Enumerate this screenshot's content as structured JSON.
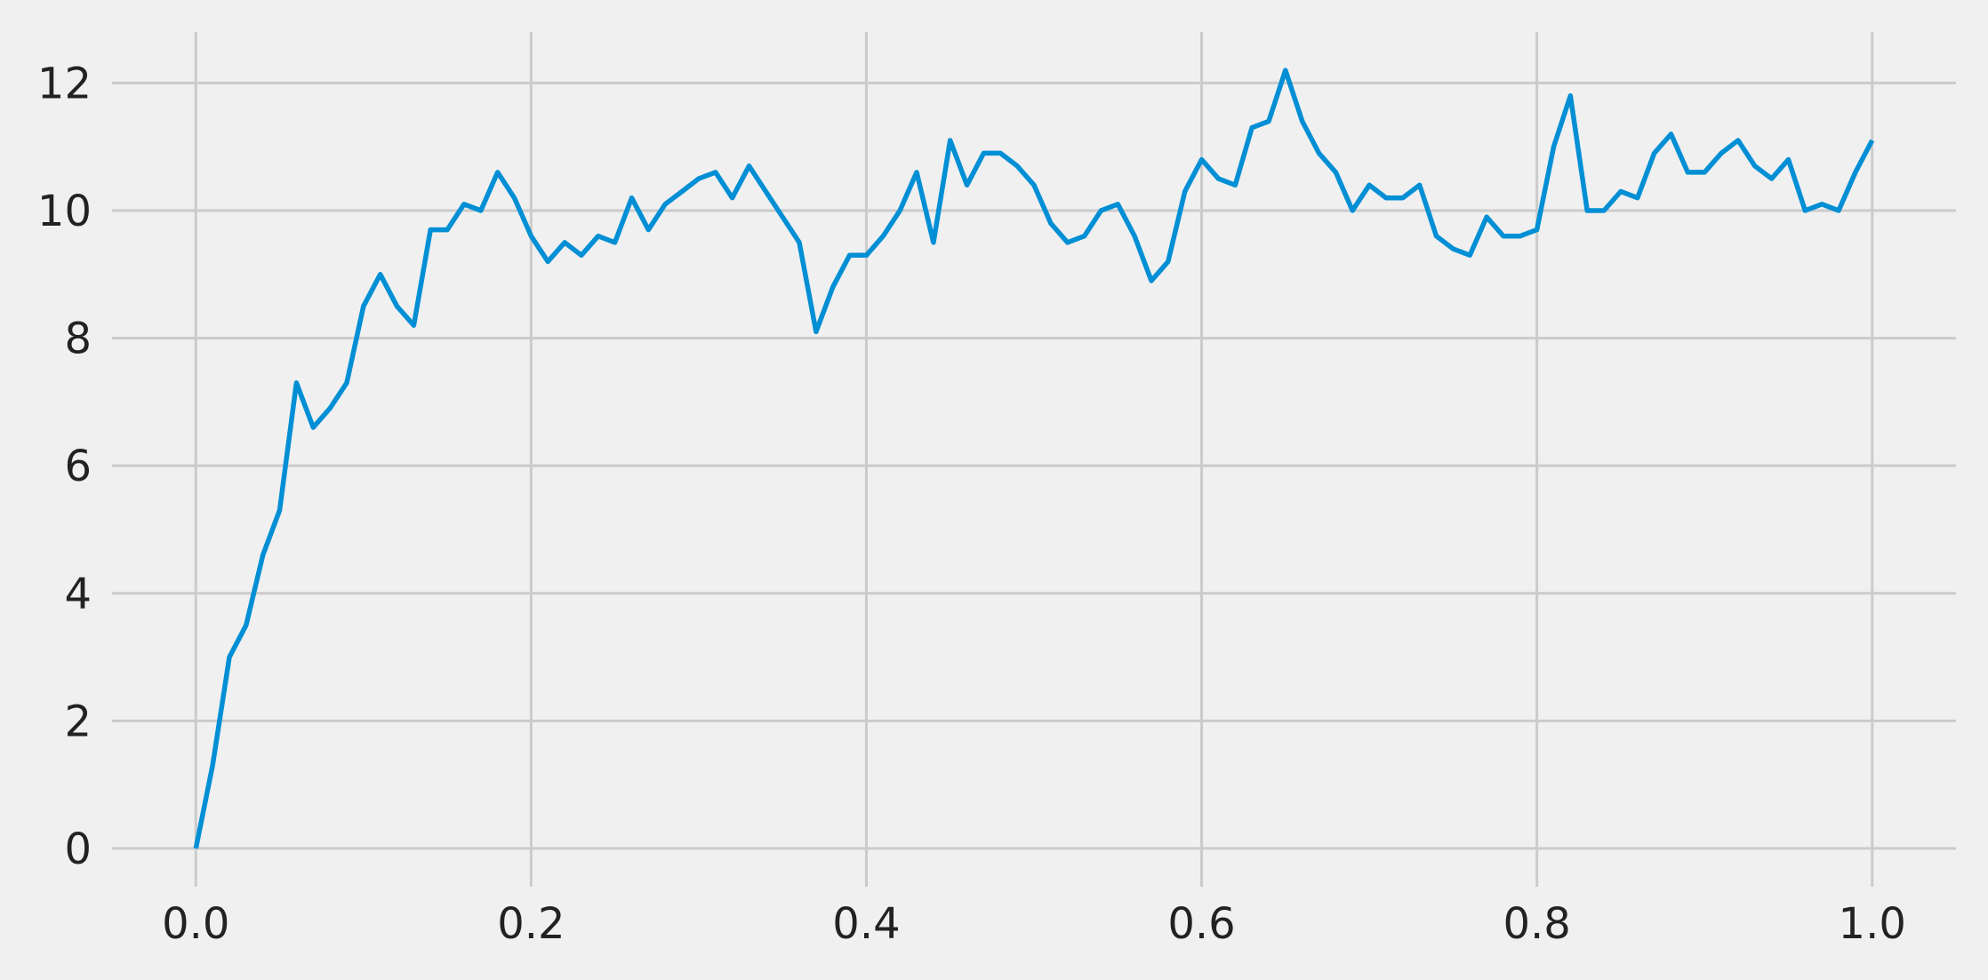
{
  "chart_data": {
    "type": "line",
    "x": [
      0.0,
      0.01,
      0.02,
      0.03,
      0.04,
      0.05,
      0.06,
      0.07,
      0.08,
      0.09,
      0.1,
      0.11,
      0.12,
      0.13,
      0.14,
      0.15,
      0.16,
      0.17,
      0.18,
      0.19,
      0.2,
      0.21,
      0.22,
      0.23,
      0.24,
      0.25,
      0.26,
      0.27,
      0.28,
      0.29,
      0.3,
      0.31,
      0.32,
      0.33,
      0.34,
      0.35,
      0.36,
      0.37,
      0.38,
      0.39,
      0.4,
      0.41,
      0.42,
      0.43,
      0.44,
      0.45,
      0.46,
      0.47,
      0.48,
      0.49,
      0.5,
      0.51,
      0.52,
      0.53,
      0.54,
      0.55,
      0.56,
      0.57,
      0.58,
      0.59,
      0.6,
      0.61,
      0.62,
      0.63,
      0.64,
      0.65,
      0.66,
      0.67,
      0.68,
      0.69,
      0.7,
      0.71,
      0.72,
      0.73,
      0.74,
      0.75,
      0.76,
      0.77,
      0.78,
      0.79,
      0.8,
      0.81,
      0.82,
      0.83,
      0.84,
      0.85,
      0.86,
      0.87,
      0.88,
      0.89,
      0.9,
      0.91,
      0.92,
      0.93,
      0.94,
      0.95,
      0.96,
      0.97,
      0.98,
      0.99,
      1.0
    ],
    "values": [
      0,
      1.3,
      3.0,
      3.5,
      4.6,
      5.3,
      7.3,
      6.6,
      6.9,
      7.3,
      8.5,
      9.0,
      8.5,
      8.2,
      9.7,
      9.7,
      10.1,
      10.0,
      10.6,
      10.2,
      9.6,
      9.2,
      9.5,
      9.3,
      9.6,
      9.5,
      10.2,
      9.7,
      10.1,
      10.3,
      10.5,
      10.6,
      10.2,
      10.7,
      10.3,
      9.9,
      9.5,
      8.1,
      8.8,
      9.3,
      9.3,
      9.6,
      10.0,
      10.6,
      9.5,
      11.1,
      10.4,
      10.9,
      10.9,
      10.7,
      10.4,
      9.8,
      9.5,
      9.6,
      10.0,
      10.1,
      9.6,
      8.9,
      9.2,
      10.3,
      10.8,
      10.5,
      10.4,
      11.3,
      11.4,
      12.2,
      11.4,
      10.9,
      10.6,
      10.0,
      10.4,
      10.2,
      10.2,
      10.4,
      9.6,
      9.4,
      9.3,
      9.9,
      9.6,
      9.6,
      9.7,
      11.0,
      11.8,
      10.0,
      10.0,
      10.3,
      10.2,
      10.9,
      11.2,
      10.6,
      10.6,
      10.9,
      11.1,
      10.7,
      10.5,
      10.8,
      10.0,
      10.1,
      10.0,
      10.6,
      11.1
    ],
    "color": "#008fd5",
    "xlim": [
      -0.05,
      1.05
    ],
    "xticks": [
      {
        "value": 0,
        "label": "0.0"
      },
      0.2,
      0.4,
      0.6,
      0.8,
      {
        "value": 1,
        "label": "1.0"
      }
    ],
    "ylim": [
      -0.6,
      12.8
    ],
    "yticks": [
      0,
      2,
      4,
      6,
      8,
      10,
      12
    ],
    "grid": true
  }
}
